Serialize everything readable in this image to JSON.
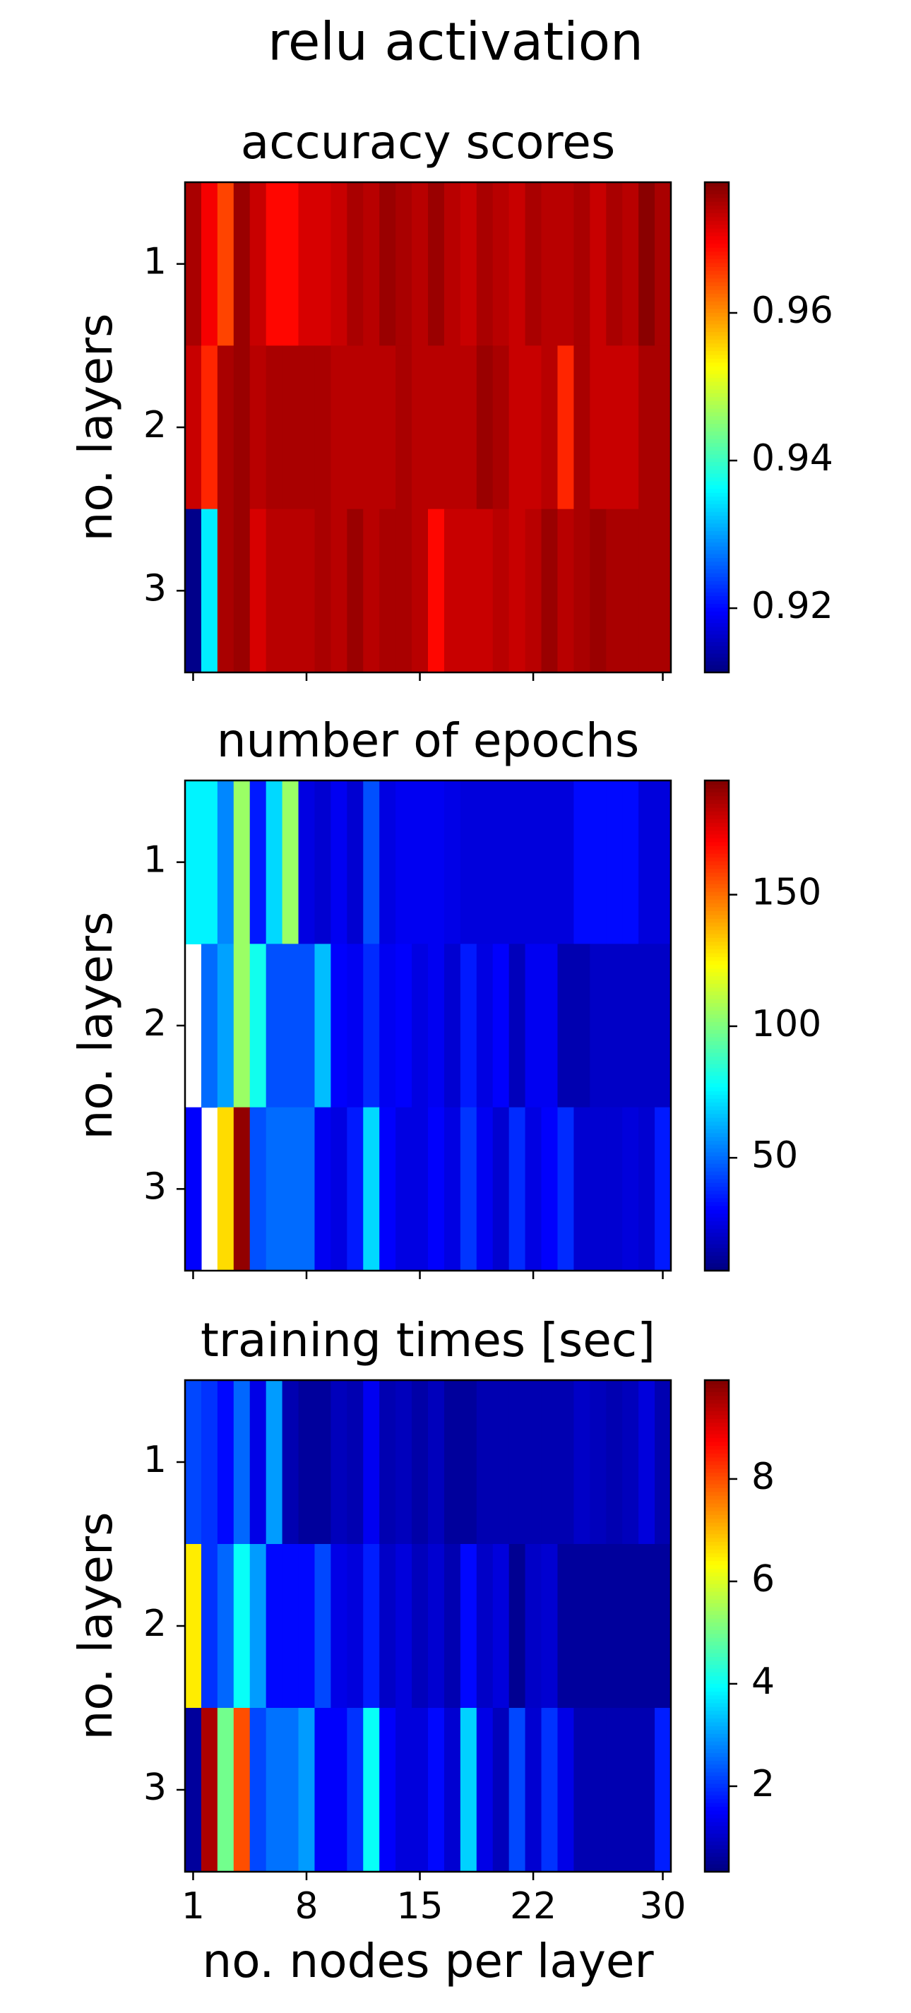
{
  "title": "relu activation",
  "chart_data": [
    {
      "type": "heatmap",
      "title": "accuracy scores",
      "ylabel": "no. layers",
      "colormap": "jet",
      "x": [
        1,
        2,
        3,
        4,
        5,
        6,
        7,
        8,
        9,
        10,
        11,
        12,
        13,
        14,
        15,
        16,
        17,
        18,
        19,
        20,
        21,
        22,
        23,
        24,
        25,
        26,
        27,
        28,
        29,
        30
      ],
      "y": [
        1,
        2,
        3
      ],
      "xlim": [
        0.5,
        30.5
      ],
      "ylim": [
        3.5,
        0.5
      ],
      "xticks": [
        1,
        8,
        15,
        22,
        30
      ],
      "yticks": [
        1,
        2,
        3
      ],
      "show_xtick_labels": false,
      "clim": [
        0.9113,
        0.9777
      ],
      "cticks": [
        0.92,
        0.94,
        0.96
      ],
      "z": [
        [
          0.975,
          0.97,
          0.965,
          0.976,
          0.973,
          0.969,
          0.969,
          0.972,
          0.972,
          0.973,
          0.975,
          0.974,
          0.976,
          0.975,
          0.974,
          0.976,
          0.974,
          0.973,
          0.975,
          0.974,
          0.973,
          0.975,
          0.974,
          0.974,
          0.975,
          0.973,
          0.975,
          0.974,
          0.977,
          0.975
        ],
        [
          0.973,
          0.967,
          0.975,
          0.976,
          0.974,
          0.975,
          0.975,
          0.975,
          0.975,
          0.974,
          0.974,
          0.974,
          0.974,
          0.975,
          0.974,
          0.974,
          0.974,
          0.974,
          0.976,
          0.975,
          0.973,
          0.973,
          0.974,
          0.967,
          0.975,
          0.973,
          0.973,
          0.973,
          0.975,
          0.975
        ],
        [
          0.912,
          0.935,
          0.975,
          0.976,
          0.972,
          0.974,
          0.974,
          0.974,
          0.975,
          0.974,
          0.976,
          0.974,
          0.975,
          0.975,
          0.974,
          0.969,
          0.973,
          0.973,
          0.973,
          0.974,
          0.973,
          0.974,
          0.976,
          0.974,
          0.975,
          0.976,
          0.975,
          0.975,
          0.975,
          0.975
        ]
      ]
    },
    {
      "type": "heatmap",
      "title": "number of epochs",
      "ylabel": "no. layers",
      "colormap": "jet",
      "x": [
        1,
        2,
        3,
        4,
        5,
        6,
        7,
        8,
        9,
        10,
        11,
        12,
        13,
        14,
        15,
        16,
        17,
        18,
        19,
        20,
        21,
        22,
        23,
        24,
        25,
        26,
        27,
        28,
        29,
        30
      ],
      "y": [
        1,
        2,
        3
      ],
      "xlim": [
        0.5,
        30.5
      ],
      "ylim": [
        3.5,
        0.5
      ],
      "xticks": [
        1,
        8,
        15,
        22,
        30
      ],
      "yticks": [
        1,
        2,
        3
      ],
      "show_xtick_labels": false,
      "clim": [
        7.1,
        193.4
      ],
      "cticks": [
        50,
        100,
        150
      ],
      "z": [
        [
          75,
          75,
          55,
          105,
          35,
          70,
          105,
          25,
          22,
          28,
          22,
          45,
          25,
          28,
          28,
          28,
          26,
          24,
          24,
          24,
          24,
          24,
          24,
          24,
          32,
          32,
          32,
          32,
          24,
          24
        ],
        [
          null,
          50,
          60,
          105,
          80,
          45,
          45,
          45,
          65,
          30,
          28,
          38,
          28,
          30,
          25,
          28,
          22,
          35,
          25,
          30,
          18,
          28,
          28,
          16,
          16,
          20,
          20,
          20,
          20,
          20
        ],
        [
          30,
          null,
          130,
          190,
          45,
          50,
          50,
          50,
          28,
          25,
          35,
          70,
          30,
          25,
          25,
          30,
          25,
          40,
          28,
          22,
          38,
          25,
          30,
          38,
          22,
          22,
          22,
          24,
          22,
          35
        ]
      ]
    },
    {
      "type": "heatmap",
      "title": "training times [sec]",
      "ylabel": "no. layers",
      "xlabel": "no. nodes per layer",
      "colormap": "jet",
      "x": [
        1,
        2,
        3,
        4,
        5,
        6,
        7,
        8,
        9,
        10,
        11,
        12,
        13,
        14,
        15,
        16,
        17,
        18,
        19,
        20,
        21,
        22,
        23,
        24,
        25,
        26,
        27,
        28,
        29,
        30
      ],
      "y": [
        1,
        2,
        3
      ],
      "xlim": [
        0.5,
        30.5
      ],
      "ylim": [
        3.5,
        0.5
      ],
      "xticks": [
        1,
        8,
        15,
        22,
        30
      ],
      "yticks": [
        1,
        2,
        3
      ],
      "show_xtick_labels": true,
      "clim": [
        0.33,
        9.93
      ],
      "cticks": [
        2,
        4,
        6,
        8
      ],
      "z": [
        [
          2.2,
          2.0,
          1.6,
          2.5,
          1.3,
          3.0,
          0.8,
          0.6,
          0.6,
          0.9,
          0.8,
          1.4,
          0.8,
          0.9,
          0.7,
          0.9,
          0.6,
          0.6,
          0.8,
          0.8,
          0.8,
          0.8,
          0.8,
          0.8,
          1.0,
          0.9,
          0.8,
          0.9,
          1.2,
          0.8
        ],
        [
          6.5,
          2.0,
          2.5,
          4.0,
          3.0,
          1.6,
          1.6,
          1.6,
          2.2,
          1.3,
          1.2,
          1.8,
          1.0,
          1.2,
          0.9,
          1.1,
          0.8,
          1.6,
          1.0,
          1.2,
          0.5,
          1.0,
          1.1,
          0.6,
          0.6,
          0.6,
          0.6,
          0.6,
          0.6,
          0.6
        ],
        [
          0.6,
          9.5,
          5.0,
          8.0,
          2.2,
          2.6,
          2.6,
          3.0,
          1.5,
          1.5,
          2.0,
          4.0,
          1.5,
          1.2,
          1.2,
          1.6,
          1.1,
          3.5,
          1.3,
          0.9,
          2.2,
          1.1,
          2.0,
          1.3,
          0.8,
          0.8,
          0.8,
          0.8,
          0.8,
          1.8
        ]
      ]
    }
  ]
}
